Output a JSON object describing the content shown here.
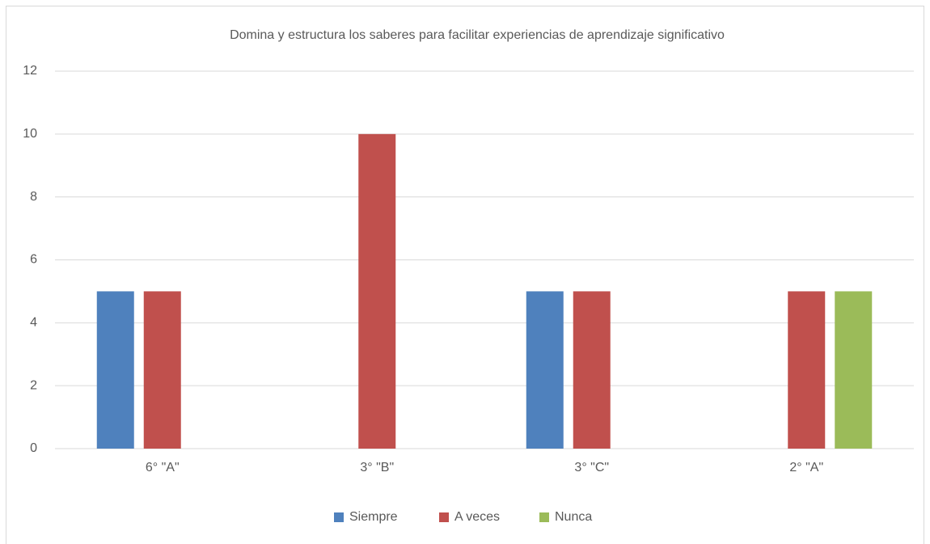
{
  "chart_data": {
    "type": "bar",
    "title": "Domina  y estructura los saberes  para facilitar experiencias de aprendizaje significativo",
    "categories": [
      "6° \"A\"",
      "3° \"B\"",
      "3° \"C\"",
      "2° \"A\""
    ],
    "series": [
      {
        "name": "Siempre",
        "color": "#4f81bd",
        "values": [
          5,
          0,
          5,
          0
        ]
      },
      {
        "name": "A veces",
        "color": "#c0504d",
        "values": [
          5,
          10,
          5,
          5
        ]
      },
      {
        "name": "Nunca",
        "color": "#9bbb59",
        "values": [
          0,
          0,
          0,
          5
        ]
      }
    ],
    "ylim": [
      0,
      12
    ],
    "yticks": [
      0,
      2,
      4,
      6,
      8,
      10,
      12
    ],
    "grid": true,
    "legend": "bottom"
  }
}
